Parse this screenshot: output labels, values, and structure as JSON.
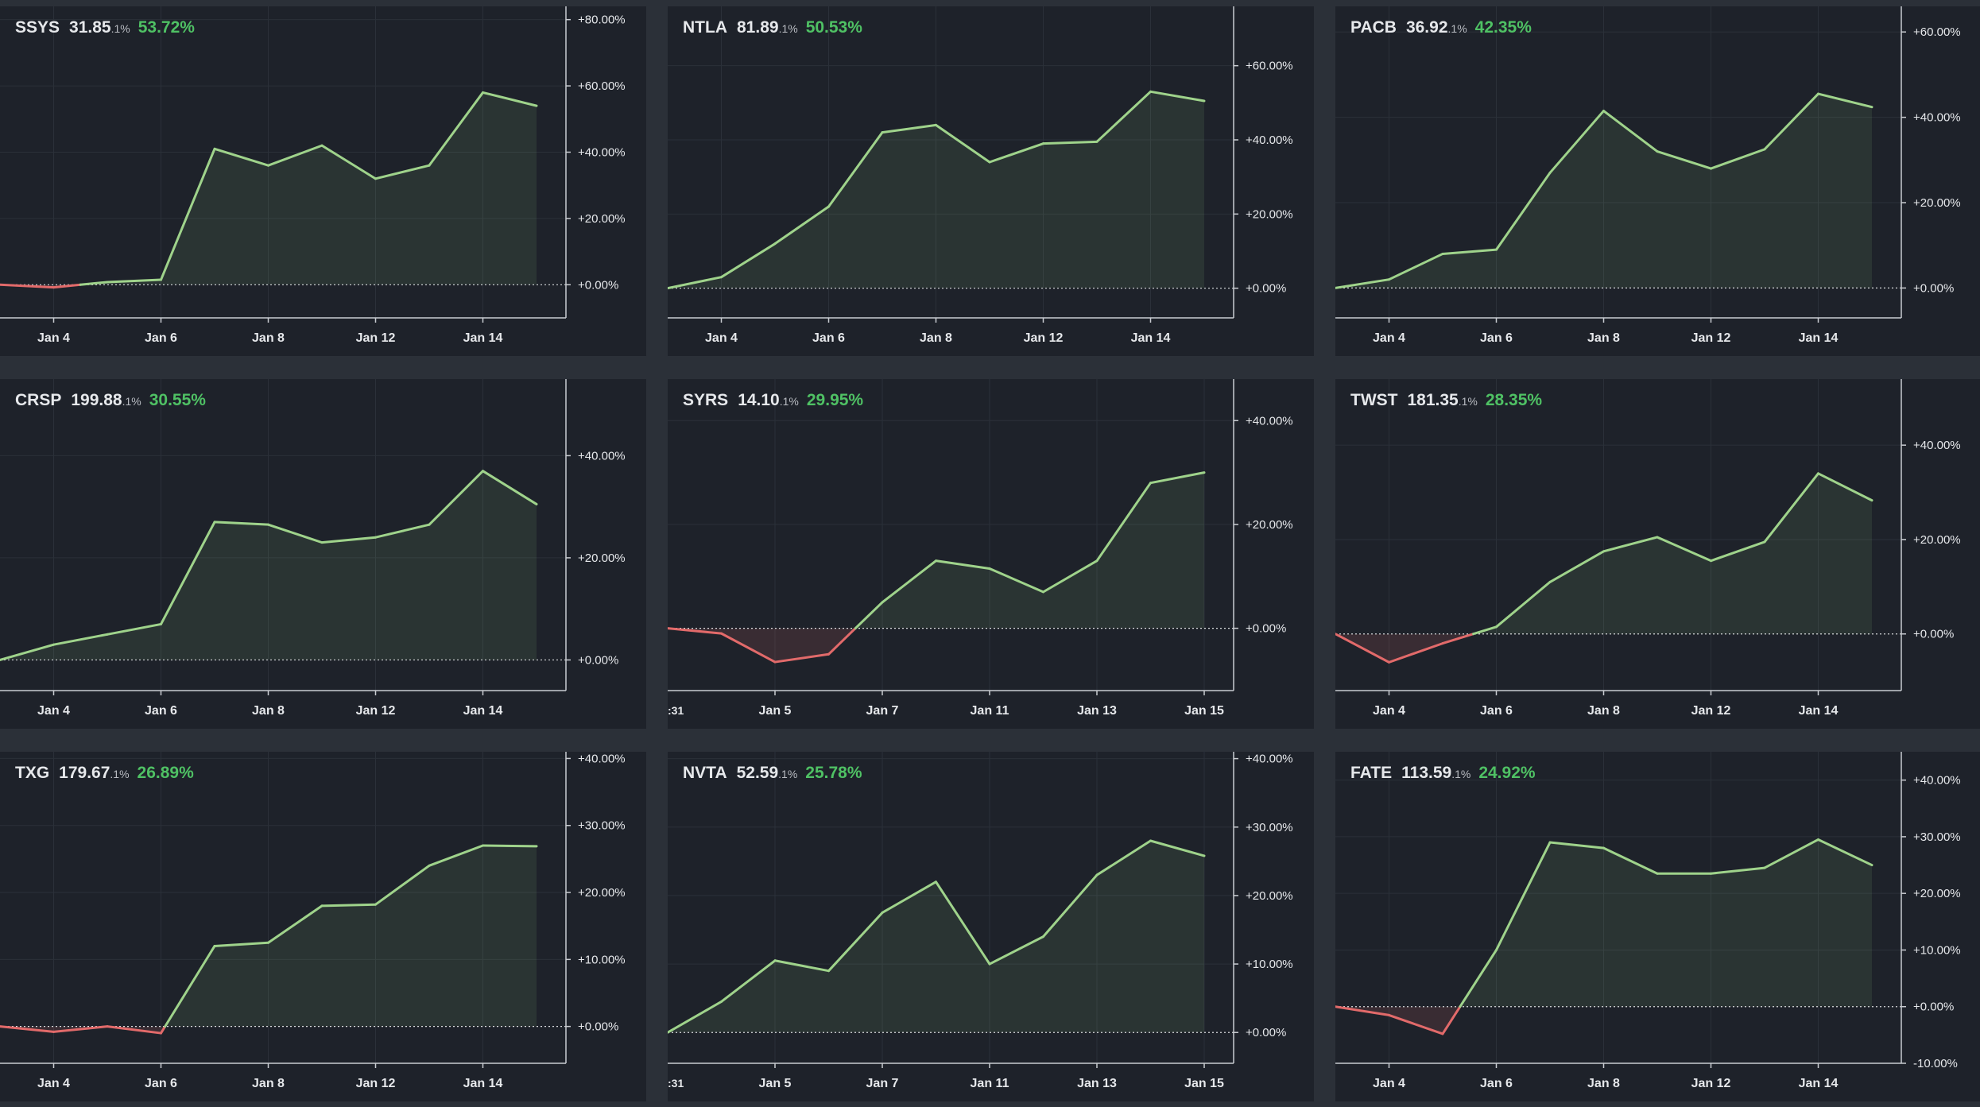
{
  "colors": {
    "background": "#2b3038",
    "panel": "#1e222a",
    "up_line": "#9fd38b",
    "down_line": "#e26a6a",
    "change_text": "#4fc164",
    "axis": "#c9ccd1",
    "grid": "#2b3039"
  },
  "chart_data": [
    {
      "type": "area",
      "symbol": "SSYS",
      "price": "31.85",
      "price_suffix": ".1%",
      "change": "53.72%",
      "x_ticks": [
        "Jan 4",
        "Jan 6",
        "Jan 8",
        "Jan 12",
        "Jan 14"
      ],
      "x_tick_positions": [
        1,
        3,
        5,
        7,
        9
      ],
      "y_ticks": [
        "+0.00%",
        "+20.00%",
        "+40.00%",
        "+60.00%",
        "+80.00%"
      ],
      "y_tick_values": [
        0,
        20,
        40,
        60,
        80
      ],
      "ylim": [
        -10,
        84
      ],
      "values": [
        0,
        -0.8,
        0.8,
        1.5,
        41,
        36,
        42,
        32,
        36,
        58,
        54
      ]
    },
    {
      "type": "area",
      "symbol": "NTLA",
      "price": "81.89",
      "price_suffix": ".1%",
      "change": "50.53%",
      "x_ticks": [
        "Jan 4",
        "Jan 6",
        "Jan 8",
        "Jan 12",
        "Jan 14"
      ],
      "x_tick_positions": [
        1,
        3,
        5,
        7,
        9
      ],
      "y_ticks": [
        "+0.00%",
        "+20.00%",
        "+40.00%",
        "+60.00%"
      ],
      "y_tick_values": [
        0,
        20,
        40,
        60
      ],
      "ylim": [
        -8,
        76
      ],
      "values": [
        0,
        3,
        12,
        22,
        42,
        44,
        34,
        39,
        39.5,
        53,
        50.5
      ]
    },
    {
      "type": "area",
      "symbol": "PACB",
      "price": "36.92",
      "price_suffix": ".1%",
      "change": "42.35%",
      "x_ticks": [
        "Jan 4",
        "Jan 6",
        "Jan 8",
        "Jan 12",
        "Jan 14"
      ],
      "x_tick_positions": [
        1,
        3,
        5,
        7,
        9
      ],
      "y_ticks": [
        "+0.00%",
        "+20.00%",
        "+40.00%",
        "+60.00%"
      ],
      "y_tick_values": [
        0,
        20,
        40,
        60
      ],
      "ylim": [
        -7,
        66
      ],
      "values": [
        0,
        2,
        8,
        9,
        27,
        41.5,
        32,
        28,
        32.5,
        45.5,
        42.4
      ]
    },
    {
      "type": "area",
      "symbol": "CRSP",
      "price": "199.88",
      "price_suffix": ".1%",
      "change": "30.55%",
      "x_ticks": [
        "Jan 4",
        "Jan 6",
        "Jan 8",
        "Jan 12",
        "Jan 14"
      ],
      "x_tick_positions": [
        1,
        3,
        5,
        7,
        9
      ],
      "y_ticks": [
        "+0.00%",
        "+20.00%",
        "+40.00%"
      ],
      "y_tick_values": [
        0,
        20,
        40
      ],
      "ylim": [
        -6,
        55
      ],
      "values": [
        0,
        3,
        5,
        7,
        27,
        26.5,
        23,
        24,
        26.5,
        37,
        30.5
      ]
    },
    {
      "type": "area",
      "symbol": "SYRS",
      "price": "14.10",
      "price_suffix": ".1%",
      "change": "29.95%",
      "x_ticks": [
        "Jan 5",
        "Jan 7",
        "Jan 11",
        "Jan 13",
        "Jan 15"
      ],
      "x_tick_positions": [
        2,
        4,
        6,
        8,
        10
      ],
      "edge_label": ":31",
      "y_ticks": [
        "+0.00%",
        "+20.00%",
        "+40.00%"
      ],
      "y_tick_values": [
        0,
        20,
        40
      ],
      "ylim": [
        -12,
        48
      ],
      "values": [
        0,
        -1,
        -6.5,
        -5,
        5,
        13,
        11.5,
        7,
        13,
        28,
        30
      ]
    },
    {
      "type": "area",
      "symbol": "TWST",
      "price": "181.35",
      "price_suffix": ".1%",
      "change": "28.35%",
      "x_ticks": [
        "Jan 4",
        "Jan 6",
        "Jan 8",
        "Jan 12",
        "Jan 14"
      ],
      "x_tick_positions": [
        1,
        3,
        5,
        7,
        9
      ],
      "y_ticks": [
        "+0.00%",
        "+20.00%",
        "+40.00%"
      ],
      "y_tick_values": [
        0,
        20,
        40
      ],
      "ylim": [
        -12,
        54
      ],
      "values": [
        0,
        -6,
        -2,
        1.5,
        11,
        17.5,
        20.5,
        15.5,
        19.5,
        34,
        28.3
      ]
    },
    {
      "type": "area",
      "symbol": "TXG",
      "price": "179.67",
      "price_suffix": ".1%",
      "change": "26.89%",
      "x_ticks": [
        "Jan 4",
        "Jan 6",
        "Jan 8",
        "Jan 12",
        "Jan 14"
      ],
      "x_tick_positions": [
        1,
        3,
        5,
        7,
        9
      ],
      "y_ticks": [
        "+0.00%",
        "+10.00%",
        "+20.00%",
        "+30.00%",
        "+40.00%"
      ],
      "y_tick_values": [
        0,
        10,
        20,
        30,
        40
      ],
      "ylim": [
        -5.5,
        41
      ],
      "values": [
        0,
        -0.8,
        0,
        -1,
        12,
        12.5,
        18,
        18.2,
        24,
        27,
        26.9
      ]
    },
    {
      "type": "area",
      "symbol": "NVTA",
      "price": "52.59",
      "price_suffix": ".1%",
      "change": "25.78%",
      "x_ticks": [
        "Jan 5",
        "Jan 7",
        "Jan 11",
        "Jan 13",
        "Jan 15"
      ],
      "x_tick_positions": [
        2,
        4,
        6,
        8,
        10
      ],
      "edge_label": ":31",
      "y_ticks": [
        "+0.00%",
        "+10.00%",
        "+20.00%",
        "+30.00%",
        "+40.00%"
      ],
      "y_tick_values": [
        0,
        10,
        20,
        30,
        40
      ],
      "ylim": [
        -4.5,
        41
      ],
      "values": [
        0,
        4.5,
        10.5,
        9,
        17.5,
        22,
        10,
        14,
        23,
        28,
        25.8
      ]
    },
    {
      "type": "area",
      "symbol": "FATE",
      "price": "113.59",
      "price_suffix": ".1%",
      "change": "24.92%",
      "x_ticks": [
        "Jan 4",
        "Jan 6",
        "Jan 8",
        "Jan 12",
        "Jan 14"
      ],
      "x_tick_positions": [
        1,
        3,
        5,
        7,
        9
      ],
      "y_ticks": [
        "-10.00%",
        "+0.00%",
        "+10.00%",
        "+20.00%",
        "+30.00%",
        "+40.00%"
      ],
      "y_tick_values": [
        -10,
        0,
        10,
        20,
        30,
        40
      ],
      "ylim": [
        -10,
        45
      ],
      "values": [
        0,
        -1.5,
        -4.8,
        10,
        29,
        28,
        23.5,
        23.5,
        24.5,
        29.5,
        25
      ]
    }
  ]
}
